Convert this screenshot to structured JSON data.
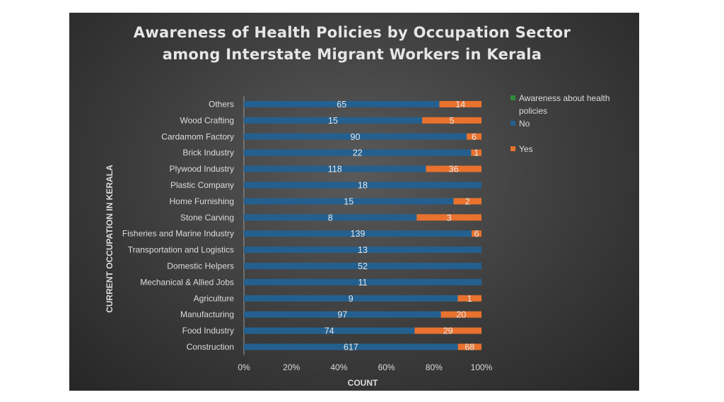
{
  "chart_data": {
    "type": "bar",
    "orientation": "horizontal",
    "stacking": "percent",
    "title_lines": [
      "Awareness of Health Policies by Occupation Sector",
      "among Interstate Migrant Workers in Kerala"
    ],
    "xlabel": "COUNT",
    "ylabel": "CURRENT OCCUPATION IN KERALA",
    "xlim": [
      0,
      100
    ],
    "xticks": [
      "0%",
      "20%",
      "40%",
      "60%",
      "80%",
      "100%"
    ],
    "categories": [
      "Others",
      "Wood Crafting",
      "Cardamom Factory",
      "Brick Industry",
      "Plywood Industry",
      "Plastic Company",
      "Home Furnishing",
      "Stone Carving",
      "Fisheries and Marine Industry",
      "Transportation and Logistics",
      "Domestic Helpers",
      "Mechanical & Allied Jobs",
      "Agriculture",
      "Manufacturing",
      "Food Industry",
      "Construction"
    ],
    "series": [
      {
        "name": "No",
        "color": "#24608f",
        "values": [
          65,
          15,
          90,
          22,
          118,
          18,
          15,
          8,
          139,
          13,
          52,
          11,
          9,
          97,
          74,
          617
        ]
      },
      {
        "name": "Yes",
        "color": "#e8722e",
        "values": [
          14,
          5,
          6,
          1,
          36,
          0,
          2,
          3,
          6,
          0,
          0,
          0,
          1,
          20,
          29,
          68
        ]
      }
    ],
    "legend": {
      "title": "Awareness about health policies",
      "title_color": "#2e8b3c",
      "placement": "right",
      "entries": [
        "No",
        "Yes"
      ]
    },
    "grid": false
  }
}
